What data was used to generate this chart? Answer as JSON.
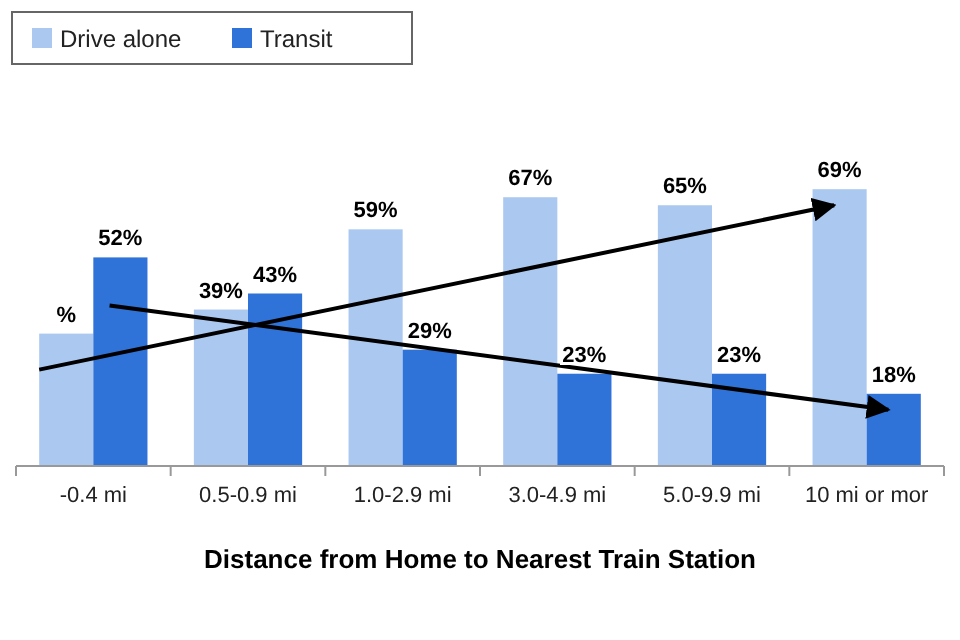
{
  "chart_data": {
    "type": "bar",
    "xlabel": "Distance from Home to Nearest Train Station",
    "categories": [
      "-0.4 mi",
      "0.5-0.9 mi",
      "1.0-2.9 mi",
      "3.0-4.9 mi",
      "5.0-9.9 mi",
      "10 mi or mor"
    ],
    "series": [
      {
        "name": "Drive alone",
        "color": "#abc9f0",
        "values": [
          33,
          39,
          59,
          67,
          65,
          69
        ],
        "value_labels": [
          "%",
          "39%",
          "59%",
          "67%",
          "65%",
          "69%"
        ]
      },
      {
        "name": "Transit",
        "color": "#2f72d8",
        "values": [
          52,
          43,
          29,
          23,
          23,
          18
        ],
        "value_labels": [
          "52%",
          "43%",
          "29%",
          "23%",
          "23%",
          "18%"
        ]
      }
    ],
    "legend": "top left"
  }
}
